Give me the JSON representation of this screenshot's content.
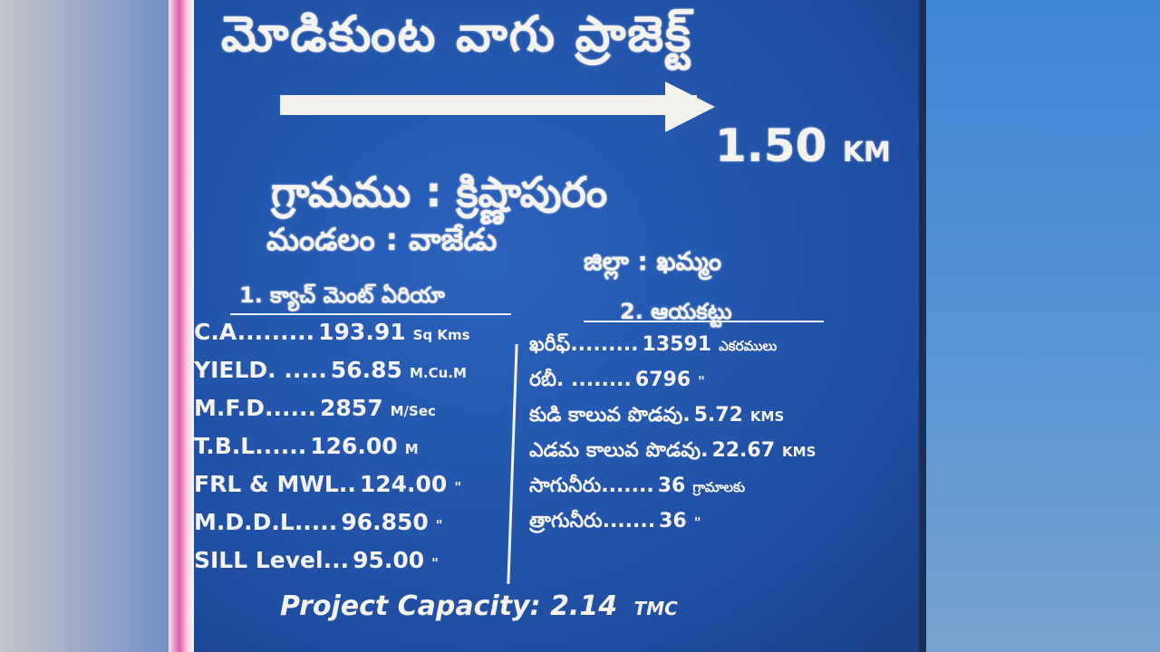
{
  "board": {
    "title": "మోడికుంట వాగు ప్రాజెక్ట్",
    "direction_icon": "right-arrow-icon",
    "distance": "1.50",
    "distance_unit": "KM",
    "village": "గ్రామము : క్రిష్ణాపురం",
    "mandal": "మండలం : వాజేడు",
    "district": "జిల్లా : ఖమ్మం",
    "catchment_heading": "1. క్యాచ్ మెంట్ ఏరియా",
    "ayacut_heading": "2. ఆయకట్టు",
    "catchment_rows": [
      {
        "label": "C.A",
        "dots": ".........",
        "value": "193.91",
        "unit": "Sq Kms"
      },
      {
        "label": "YIELD",
        "dots": ". .....",
        "value": "56.85",
        "unit": "M.Cu.M"
      },
      {
        "label": "M.F.D",
        "dots": "......",
        "value": "2857",
        "unit": "M/Sec"
      },
      {
        "label": "T.B.L",
        "dots": "......",
        "value": "126.00",
        "unit": "M"
      },
      {
        "label": "FRL & MWL",
        "dots": "..",
        "value": "124.00",
        "unit": "\""
      },
      {
        "label": "M.D.D.L",
        "dots": ".....",
        "value": "96.850",
        "unit": "\""
      },
      {
        "label": "SILL Level",
        "dots": "...",
        "value": "95.00",
        "unit": "\""
      }
    ],
    "ayacut_rows": [
      {
        "label": "ఖరీఫ్",
        "dots": ".........",
        "value": "13591",
        "unit": "ఎకరములు"
      },
      {
        "label": "రబీ",
        "dots": ". ........",
        "value": "6796",
        "unit": "\""
      },
      {
        "label": "కుడి కాలువ పొడవు",
        "dots": ".",
        "value": "5.72",
        "unit": "KMS"
      },
      {
        "label": "ఎడమ కాలువ పొడవు",
        "dots": ".",
        "value": "22.67",
        "unit": "KMS"
      },
      {
        "label": "సాగునీరు",
        "dots": ".......",
        "value": "36",
        "unit": "గ్రామాలకు"
      },
      {
        "label": "త్రాగునీరు",
        "dots": ".......",
        "value": "36",
        "unit": "\""
      }
    ],
    "capacity_label": "Project Capacity:",
    "capacity_value": "2.14",
    "capacity_unit": "TMC",
    "colors": {
      "board": "#2459b0",
      "text": "#f5f3ef",
      "post": "#e35aa8"
    }
  }
}
